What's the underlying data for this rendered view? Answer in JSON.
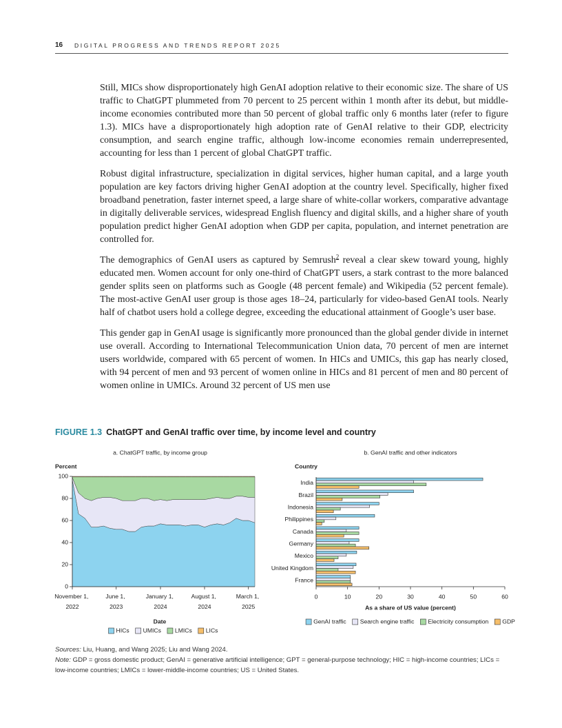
{
  "header": {
    "page_number": "16",
    "running_title": "DIGITAL PROGRESS AND TRENDS REPORT 2025"
  },
  "body": {
    "p1": "Still, MICs show disproportionately high GenAI adoption relative to their economic size. The share of US traffic to ChatGPT plummeted from 70 percent to 25 percent within 1 month after its debut, but middle-income economies contributed more than 50 percent of global traffic only 6 months later (refer to figure 1.3). MICs have a disproportionately high adoption rate of GenAI relative to their GDP, electricity consumption, and search engine traffic, although low-income economies remain underrepresented, accounting for less than 1 percent of global ChatGPT traffic.",
    "p2": "Robust digital infrastructure, specialization in digital services, higher human capital, and a large youth population are key factors driving higher GenAI adoption at the country level. Specifically, higher fixed broadband penetration, faster internet speed, a large share of white-collar workers, comparative advantage in digitally deliverable services, widespread English fluency and digital skills, and a higher share of youth population predict higher GenAI adoption when GDP per capita, population, and internet penetration are controlled for.",
    "p3": {
      "before": "The demographics of GenAI users as captured by Semrush",
      "footnote": "2",
      "after": " reveal a clear skew toward young, highly educated men. Women account for only one-third of ChatGPT users, a stark contrast to the more balanced gender splits seen on platforms such as Google (48 percent female) and Wikipedia (52 percent female). The most-active GenAI user group is those ages 18–24, particularly for video-based GenAI tools. Nearly half of chatbot users hold a college degree, exceeding the educational attainment of Google’s user base."
    },
    "p4": "This gender gap in GenAI usage is significantly more pronounced than the global gender divide in internet use overall. According to International Telecommunication Union data, 70 percent of men are internet users worldwide, compared with 65 percent of women. In HICs and UMICs, this gap has nearly closed, with 94 percent of men and 93 percent of women online in HICs and 81 percent of men and 80 percent of women online in UMICs. Around 32 percent of US men use"
  },
  "figure": {
    "label": "FIGURE 1.3",
    "title": "ChatGPT and GenAI traffic over time, by income level and country"
  },
  "chart_data": [
    {
      "type": "area",
      "stacked": true,
      "title": "a. ChatGPT traffic, by income group",
      "ylabel": "Percent",
      "xlabel": "Date",
      "x": [
        "2022-11-01",
        "2022-12-01",
        "2023-01-01",
        "2023-02-01",
        "2023-03-01",
        "2023-04-01",
        "2023-05-01",
        "2023-06-01",
        "2023-07-01",
        "2023-08-01",
        "2023-09-01",
        "2023-10-01",
        "2023-11-01",
        "2023-12-01",
        "2024-01-01",
        "2024-02-01",
        "2024-03-01",
        "2024-04-01",
        "2024-05-01",
        "2024-06-01",
        "2024-07-01",
        "2024-08-01",
        "2024-09-01",
        "2024-10-01",
        "2024-11-01",
        "2024-12-01",
        "2025-01-01",
        "2025-02-01",
        "2025-03-01",
        "2025-04-01"
      ],
      "xlim": [
        "2022-11-01",
        "2025-04-01"
      ],
      "xticks": [
        {
          "value": "2022-11-01",
          "label": "November 1, 2022"
        },
        {
          "value": "2023-06-01",
          "label": "June 1, 2023"
        },
        {
          "value": "2024-01-01",
          "label": "January 1, 2024"
        },
        {
          "value": "2024-08-01",
          "label": "August 1, 2024"
        },
        {
          "value": "2025-03-01",
          "label": "March 1, 2025"
        }
      ],
      "ylim": [
        0,
        100
      ],
      "yticks": [
        0,
        20,
        40,
        60,
        80,
        100
      ],
      "series": [
        {
          "name": "HICs",
          "color": "#8dd3ef",
          "values": [
            97,
            66,
            62,
            54,
            54,
            55,
            53,
            52,
            52,
            50,
            50,
            54,
            55,
            55,
            57,
            56,
            56,
            56,
            55,
            56,
            56,
            54,
            56,
            57,
            56,
            58,
            62,
            60,
            60,
            58
          ]
        },
        {
          "name": "UMICs",
          "color": "#e7e6f6",
          "values": [
            2,
            19,
            18,
            24,
            26,
            26,
            28,
            28,
            26,
            28,
            28,
            26,
            25,
            23,
            22,
            22,
            23,
            23,
            24,
            23,
            23,
            25,
            24,
            24,
            24,
            22,
            20,
            22,
            21,
            23
          ]
        },
        {
          "name": "LMICs",
          "color": "#a8d9a2",
          "values": [
            0.5,
            14.5,
            19.5,
            21.5,
            19.5,
            18.5,
            18.5,
            19.5,
            21.5,
            21.5,
            21.5,
            19.5,
            19.5,
            21.5,
            20.5,
            21.5,
            20.5,
            20.5,
            20.5,
            20.5,
            20.5,
            20.5,
            19.5,
            18.5,
            19.5,
            19.5,
            17.5,
            17.5,
            18.5,
            18.5
          ]
        },
        {
          "name": "LICs",
          "color": "#f6bf6b",
          "values": [
            0.5,
            0.5,
            0.5,
            0.5,
            0.5,
            0.5,
            0.5,
            0.5,
            0.5,
            0.5,
            0.5,
            0.5,
            0.5,
            0.5,
            0.5,
            0.5,
            0.5,
            0.5,
            0.5,
            0.5,
            0.5,
            0.5,
            0.5,
            0.5,
            0.5,
            0.5,
            0.5,
            0.5,
            0.5,
            0.5
          ]
        }
      ]
    },
    {
      "type": "bar",
      "orientation": "horizontal",
      "title": "b. GenAI traffic and other indicators",
      "ylabel": "Country",
      "xlabel": "As a share of US value (percent)",
      "categories": [
        "India",
        "Brazil",
        "Indonesia",
        "Philippines",
        "Canada",
        "Germany",
        "Mexico",
        "United Kingdom",
        "France"
      ],
      "xlim": [
        0,
        60
      ],
      "xticks": [
        0,
        10,
        20,
        30,
        40,
        50,
        60
      ],
      "series": [
        {
          "name": "GenAI traffic",
          "color": "#8dd3ef",
          "values": [
            53,
            31,
            20,
            18.6,
            13.6,
            13.6,
            12.9,
            12.7,
            10.9
          ]
        },
        {
          "name": "Search engine traffic",
          "color": "#e7e6f6",
          "values": [
            31,
            22.8,
            17,
            6.3,
            9.6,
            10.5,
            9.6,
            11.8,
            10.9
          ]
        },
        {
          "name": "Electricity consumption",
          "color": "#a8d9a2",
          "values": [
            35,
            20.3,
            7.7,
            2.6,
            13.6,
            12.5,
            7,
            7,
            10.9
          ]
        },
        {
          "name": "GDP",
          "color": "#f6bf6b",
          "values": [
            13.6,
            8.3,
            5.5,
            1.8,
            8.8,
            16.8,
            5.7,
            12.5,
            11.4
          ]
        }
      ]
    }
  ],
  "footer": {
    "sources_label": "Sources:",
    "sources": "Liu, Huang, and Wang 2025; Liu and Wang 2024.",
    "note_label": "Note:",
    "note": "GDP = gross domestic product; GenAI = generative artificial intelligence; GPT = general-purpose technology; HIC = high-income countries; LICs = low-income countries; LMICs = lower-middle-income countries; US = United States."
  }
}
